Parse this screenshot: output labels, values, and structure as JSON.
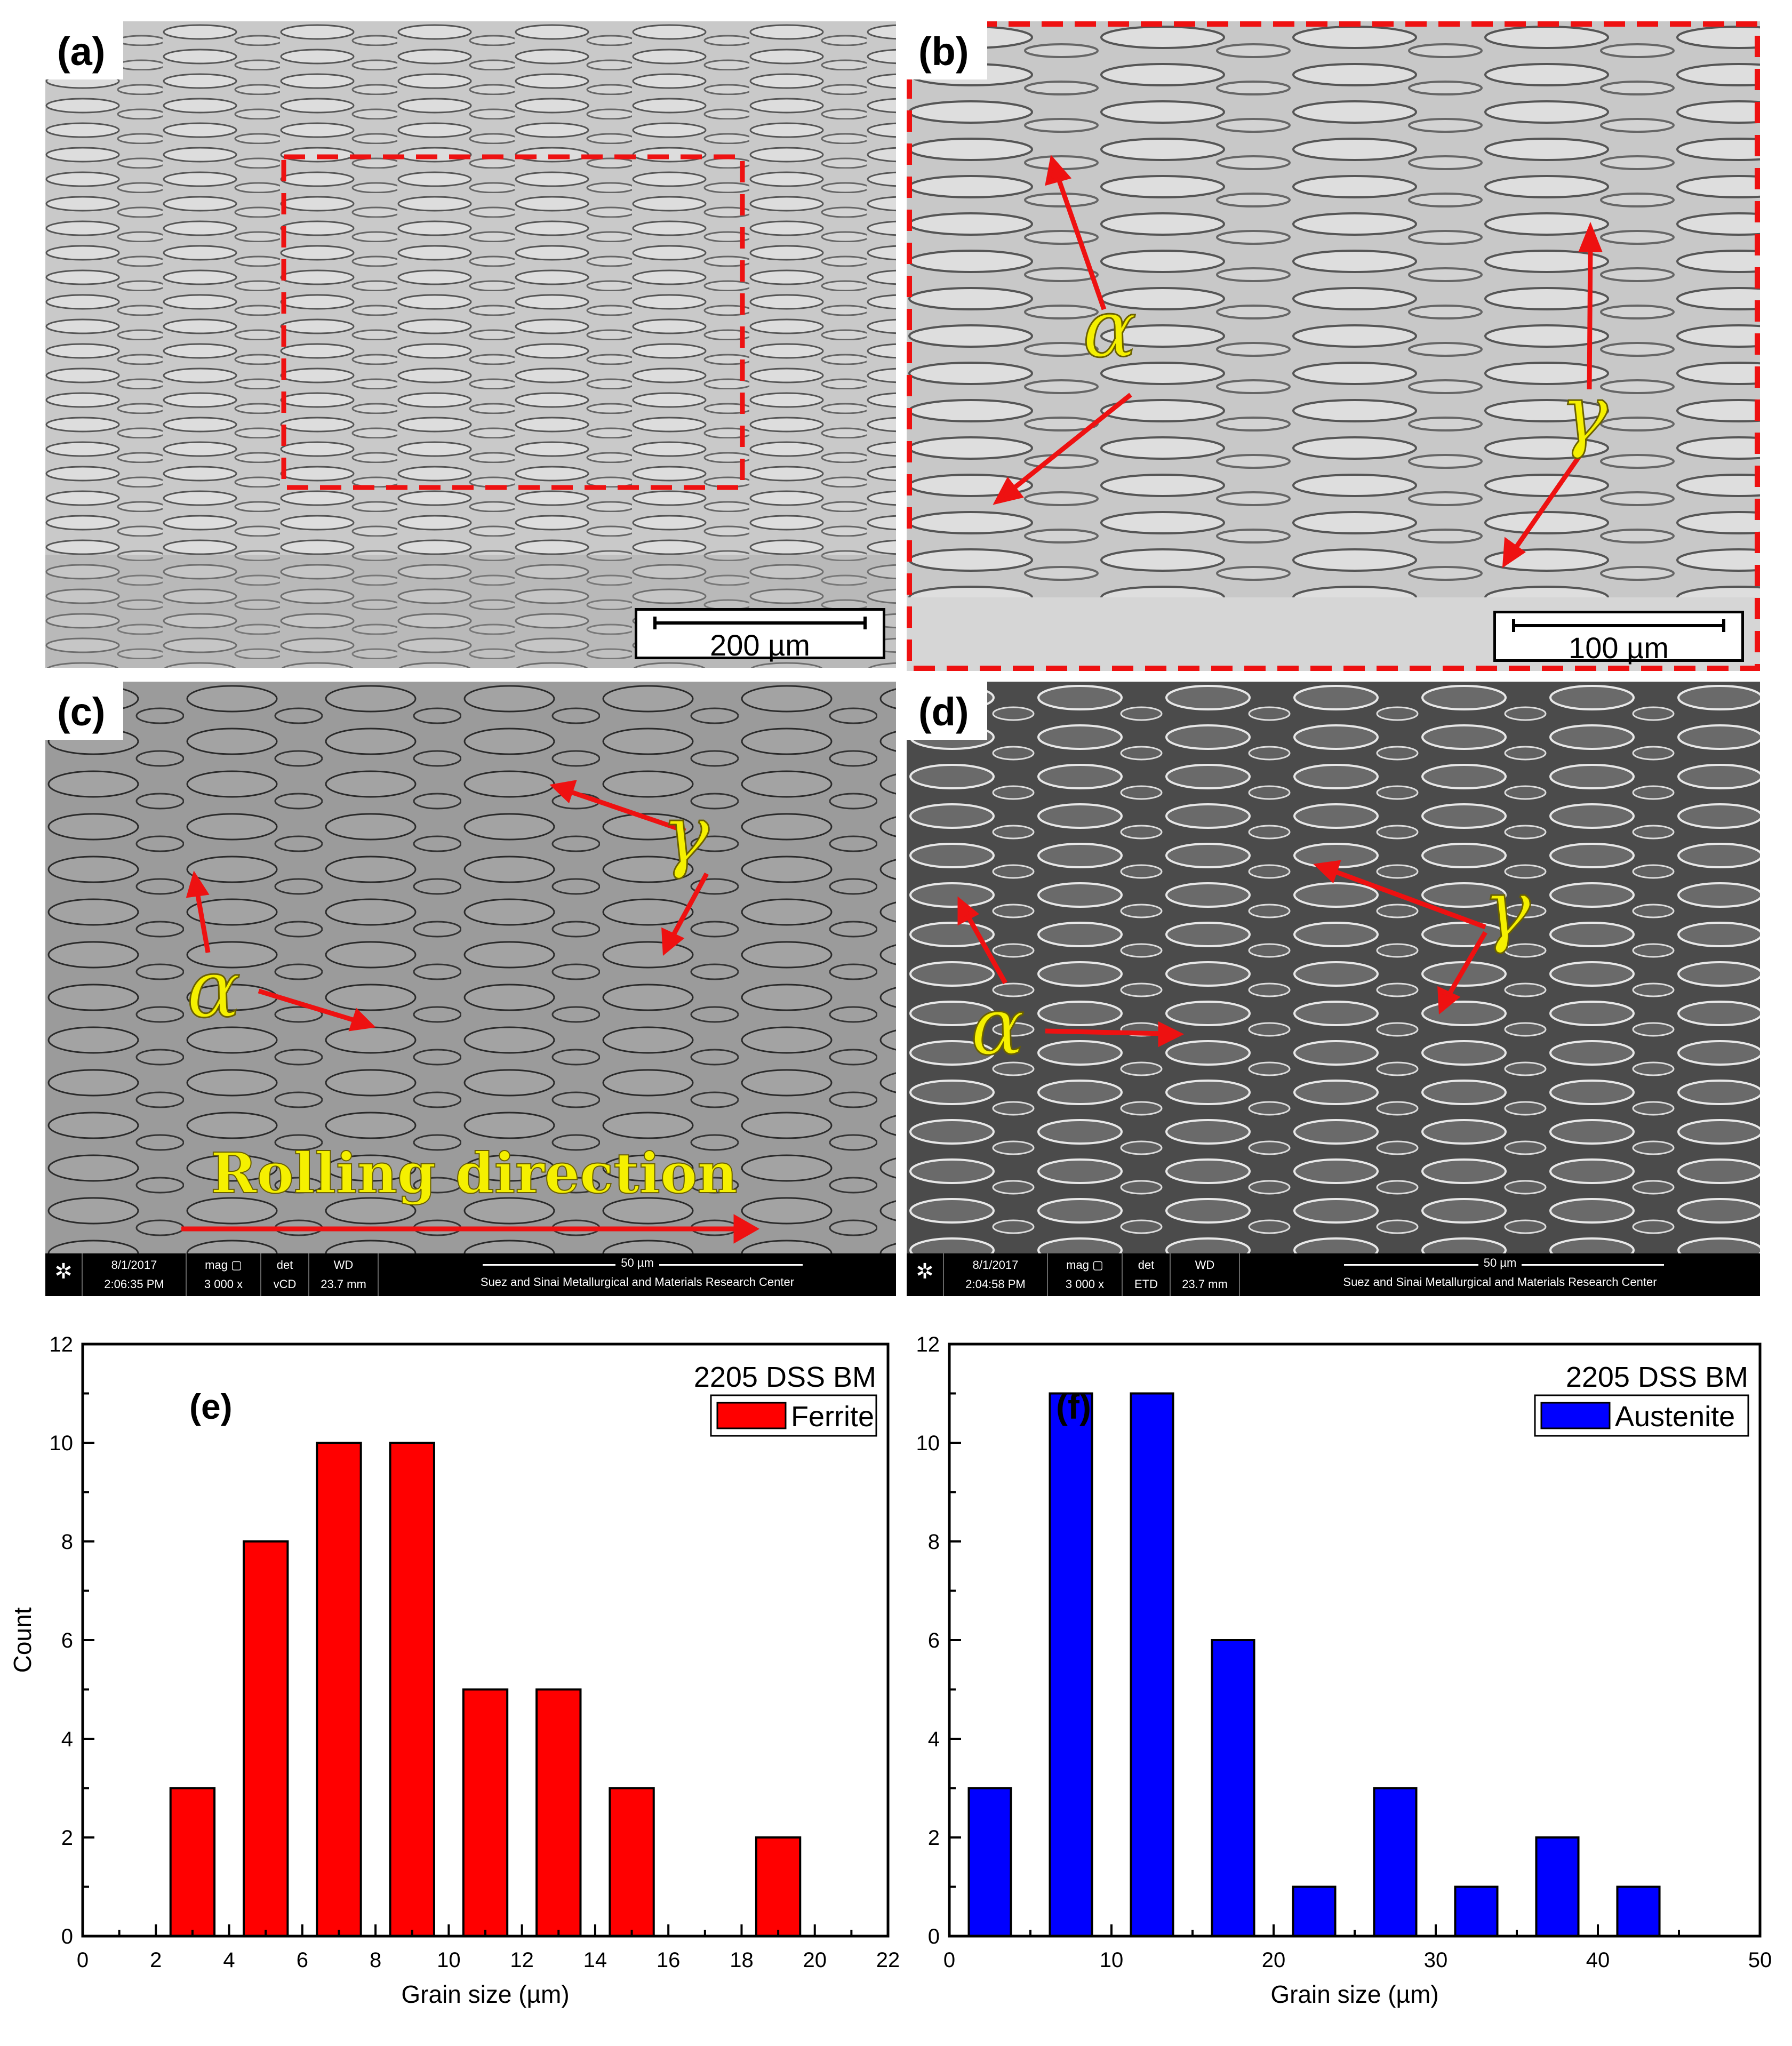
{
  "panels": {
    "a": {
      "label": "(a)",
      "scale_text": "200 µm"
    },
    "b": {
      "label": "(b)",
      "scale_text": "100 µm",
      "alpha": "α",
      "gamma": "γ"
    },
    "c": {
      "label": "(c)",
      "alpha": "α",
      "gamma": "γ",
      "rolling_text": "Rolling direction",
      "databar": {
        "date": "8/1/2017",
        "time": "2:06:35 PM",
        "mag_label": "mag ▢",
        "mag_value": "3 000 x",
        "det_label": "det",
        "det_value": "vCD",
        "wd_label": "WD",
        "wd_value": "23.7 mm",
        "scale_text": "50 µm",
        "center": "Suez and Sinai Metallurgical and Materials Research Center"
      }
    },
    "d": {
      "label": "(d)",
      "alpha": "α",
      "gamma": "γ",
      "databar": {
        "date": "8/1/2017",
        "time": "2:04:58 PM",
        "mag_label": "mag ▢",
        "mag_value": "3 000 x",
        "det_label": "det",
        "det_value": "ETD",
        "wd_label": "WD",
        "wd_value": "23.7 mm",
        "scale_text": "50 µm",
        "center": "Suez and Sinai Metallurgical and Materials Research Center"
      }
    }
  },
  "chart_data": [
    {
      "type": "bar",
      "panel_label": "(e)",
      "legend_title": "2205 DSS BM",
      "series": [
        {
          "name": "Ferrite",
          "color": "#ff0000",
          "x": [
            3,
            5,
            7,
            9,
            11,
            13,
            15,
            17,
            19
          ],
          "values": [
            3,
            8,
            10,
            10,
            5,
            5,
            3,
            0,
            2
          ]
        }
      ],
      "xlabel": "Grain size (µm)",
      "ylabel": "Count",
      "xlim": [
        0,
        22
      ],
      "ylim": [
        0,
        12
      ],
      "xticks": [
        0,
        2,
        4,
        6,
        8,
        10,
        12,
        14,
        16,
        18,
        20,
        22
      ],
      "yticks": [
        0,
        2,
        4,
        6,
        8,
        10,
        12
      ],
      "bar_width": 1.2,
      "legend_position": "top-right",
      "grid": false
    },
    {
      "type": "bar",
      "panel_label": "(f)",
      "legend_title": "2205 DSS BM",
      "series": [
        {
          "name": "Austenite",
          "color": "#0000ff",
          "x": [
            2.5,
            7.5,
            12.5,
            17.5,
            22.5,
            27.5,
            32.5,
            37.5,
            42.5
          ],
          "values": [
            3,
            11,
            11,
            6,
            1,
            3,
            1,
            2,
            1
          ]
        }
      ],
      "xlabel": "Grain size (µm)",
      "ylabel": "",
      "xlim": [
        0,
        50
      ],
      "ylim": [
        0,
        12
      ],
      "xticks": [
        0,
        10,
        20,
        30,
        40,
        50
      ],
      "yticks": [
        0,
        2,
        4,
        6,
        8,
        10,
        12
      ],
      "bar_width": 2.6,
      "legend_position": "top-right",
      "grid": false
    }
  ]
}
